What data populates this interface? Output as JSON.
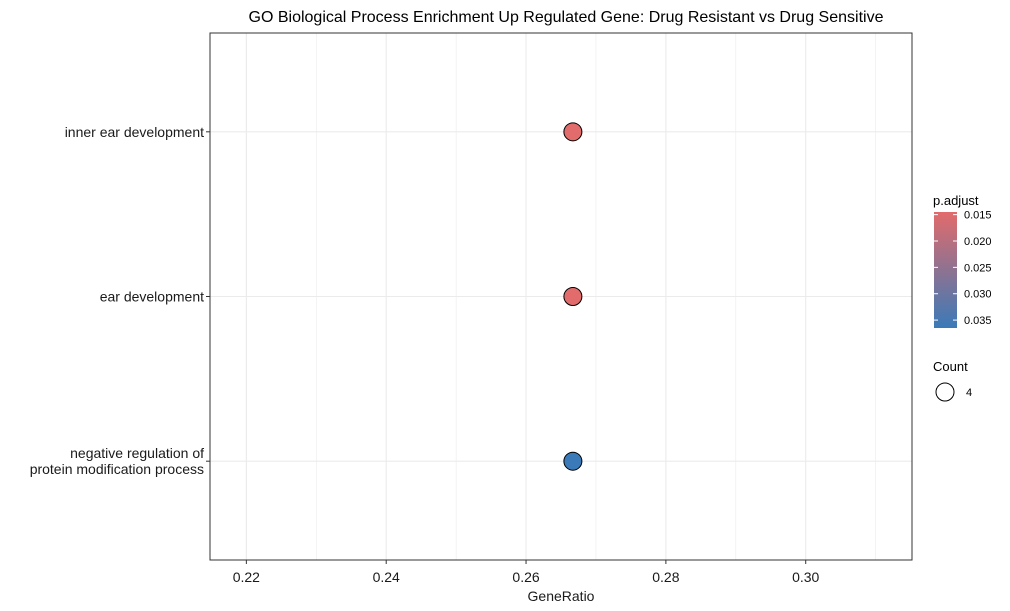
{
  "chart_data": {
    "type": "scatter",
    "title": "GO Biological Process Enrichment Up Regulated Gene: Drug Resistant vs Drug Sensitive",
    "xlabel": "GeneRatio",
    "ylabel": "",
    "xlim": [
      0.2148,
      0.3152
    ],
    "xticks": [
      0.22,
      0.24,
      0.26,
      0.28,
      0.3
    ],
    "xtick_labels": [
      "0.22",
      "0.24",
      "0.26",
      "0.28",
      "0.30"
    ],
    "categories": [
      {
        "label_lines": [
          "inner ear development"
        ],
        "gene_ratio": 0.2667,
        "p_adjust": 0.0145,
        "count": 4
      },
      {
        "label_lines": [
          "ear development"
        ],
        "gene_ratio": 0.2667,
        "p_adjust": 0.0145,
        "count": 4
      },
      {
        "label_lines": [
          "negative regulation of",
          "protein modification process"
        ],
        "gene_ratio": 0.2667,
        "p_adjust": 0.0365,
        "count": 4
      }
    ],
    "grid": true,
    "legend_position": "right",
    "color_scale": {
      "title": "p.adjust",
      "min": 0.0145,
      "max": 0.0365,
      "low_color": "#e26b6b",
      "high_color": "#3a7ab8",
      "ticks": [
        0.015,
        0.02,
        0.025,
        0.03,
        0.035
      ],
      "tick_labels": [
        "0.015",
        "0.020",
        "0.025",
        "0.030",
        "0.035"
      ]
    },
    "size_legend": {
      "title": "Count",
      "entries": [
        {
          "value": 4,
          "label": "4"
        }
      ]
    },
    "colors": {
      "panel_border": "#333333",
      "grid": "#ebebeb",
      "point_stroke": "#000000"
    }
  }
}
